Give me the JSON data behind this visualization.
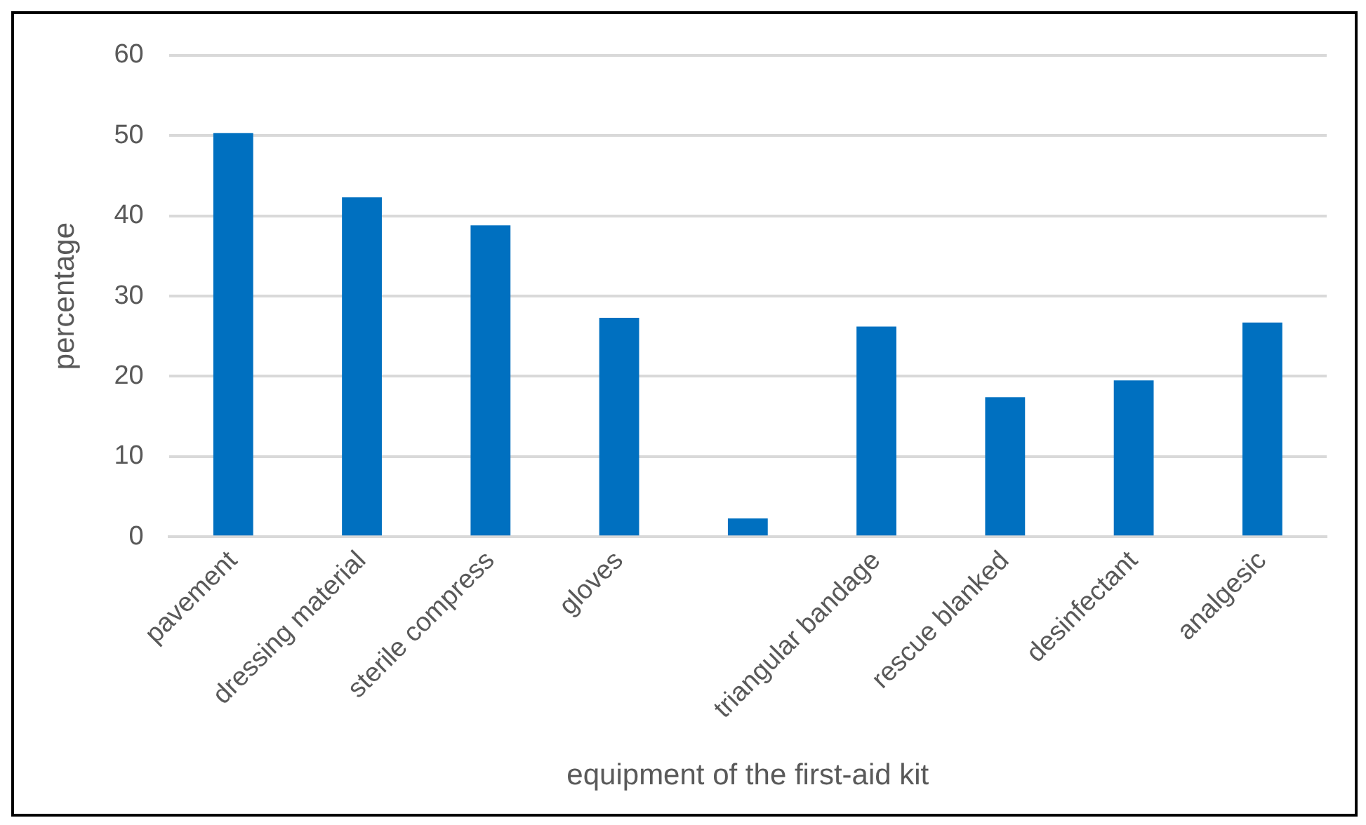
{
  "chart_data": {
    "type": "bar",
    "xlabel": "equipment of the first-aid kit",
    "ylabel": "percentage",
    "categories": [
      "pavement",
      "dressing material",
      "sterile compress",
      "gloves",
      null,
      "triangular bandage",
      "rescue blanked",
      "desinfectant",
      "analgesic"
    ],
    "values": [
      50.3,
      42.3,
      38.8,
      27.3,
      2.3,
      26.2,
      17.4,
      19.5,
      26.7
    ],
    "color": "#0070c0",
    "ylim": [
      0,
      60
    ],
    "yticks": [
      0,
      10,
      20,
      30,
      40,
      50,
      60
    ],
    "grid": "y",
    "legend": false
  }
}
